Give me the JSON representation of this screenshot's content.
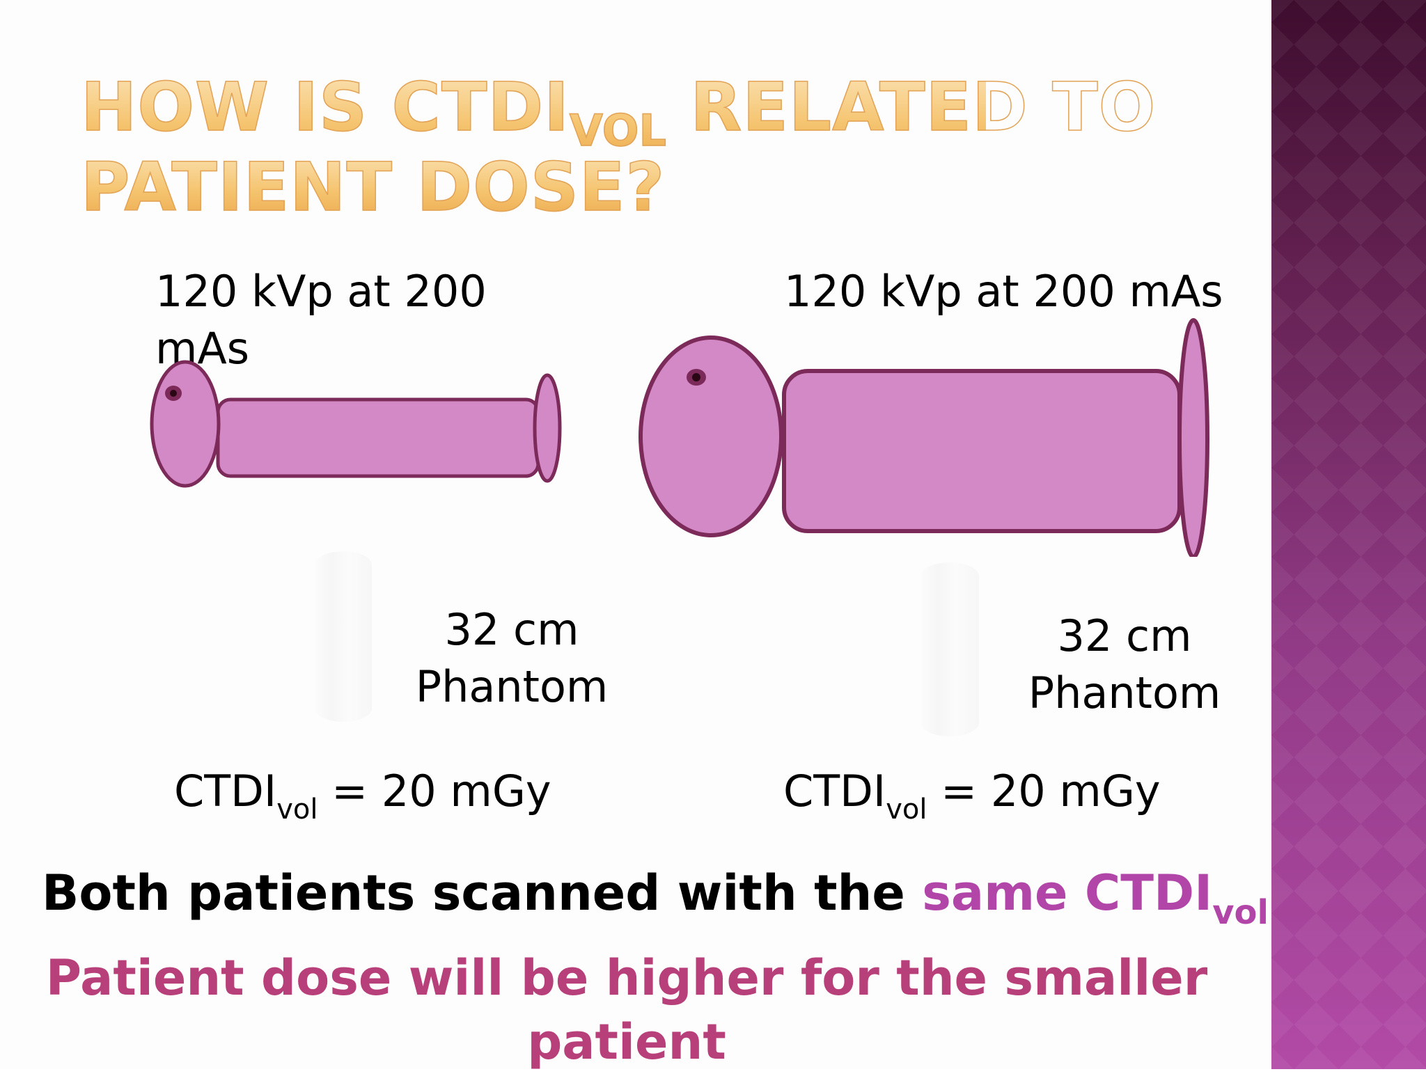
{
  "slide": {
    "title": {
      "line1_before": "HOW IS CTDI",
      "line1_sub": "VOL",
      "line1_after": " RELATED TO",
      "line2": "PATIENT DOSE?"
    },
    "left": {
      "exposure": "120 kVp at 200 mAs",
      "phantom_line1": "32 cm",
      "phantom_line2": "Phantom",
      "ctdi_prefix": "CTDI",
      "ctdi_sub": "vol",
      "ctdi_value": " = 20 mGy"
    },
    "right": {
      "exposure": "120 kVp at 200 mAs",
      "phantom_line1": "32 cm",
      "phantom_line2": "Phantom",
      "ctdi_prefix": "CTDI",
      "ctdi_sub": "vol",
      "ctdi_value": " = 20 mGy"
    },
    "summary": {
      "line1_prefix": "Both patients scanned with the ",
      "line1_highlight": "same CTDI",
      "line1_highlight_sub": "vol",
      "line2": "Patient dose will be higher for the smaller patient"
    },
    "colors": {
      "figure_fill": "#d389c6",
      "figure_stroke": "#7c2a59",
      "eye": "#4a0f24",
      "title_gold": "#f5c46f",
      "highlight_purple": "#b146a8",
      "conclusion_magenta": "#b8407a",
      "side_panel": "#7a2d6c"
    },
    "icons": [
      "small-patient-figure",
      "large-patient-figure"
    ]
  }
}
